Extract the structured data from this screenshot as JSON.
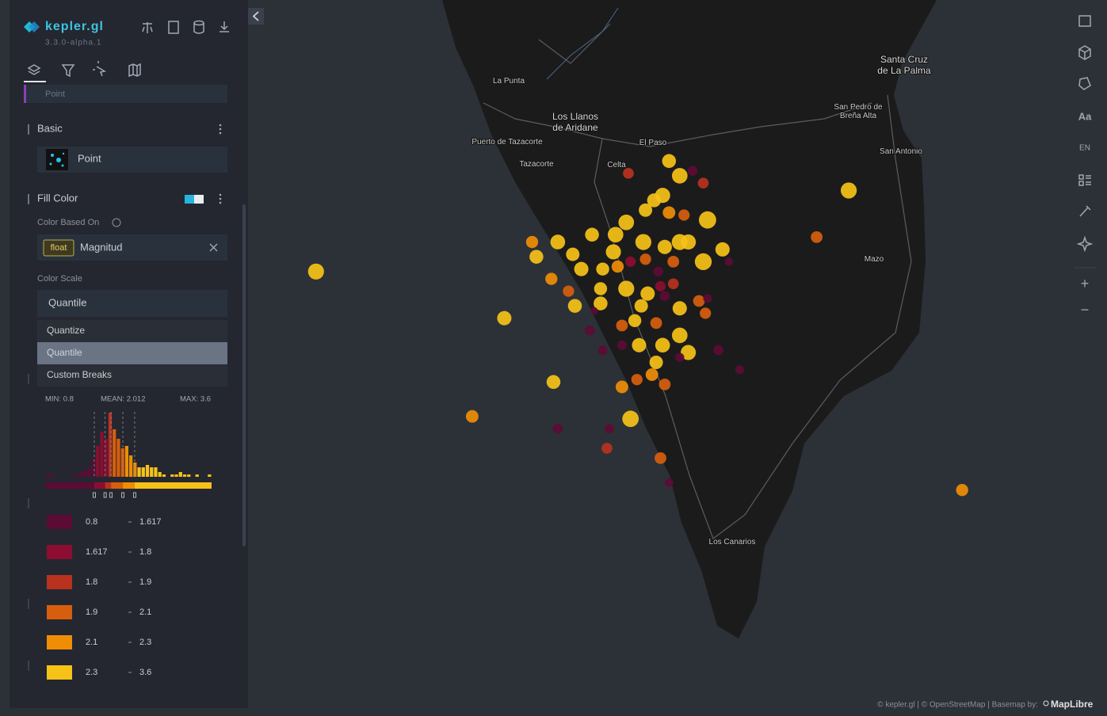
{
  "app": {
    "logo": "kepler.gl",
    "version": "3.3.0-alpha.1"
  },
  "panel": {
    "layer_name": "Point",
    "basic_title": "Basic",
    "layer_type": "Point",
    "fill_color_title": "Fill Color",
    "color_based_on_label": "Color Based On",
    "field_type": "float",
    "field_name": "Magnitud",
    "color_scale_label": "Color Scale",
    "color_scale_selected": "Quantile",
    "color_scale_options": [
      "Quantize",
      "Quantile",
      "Custom Breaks"
    ],
    "highlighted_option": 1,
    "stats": {
      "min": "MIN: 0.8",
      "mean": "MEAN: 2.012",
      "max": "MAX: 3.6"
    },
    "histogram": {
      "bins": [
        0.8,
        0.87,
        0.94,
        1.01,
        1.08,
        1.15,
        1.22,
        1.29,
        1.36,
        1.43,
        1.5,
        1.57,
        1.64,
        1.71,
        1.78,
        1.85,
        1.92,
        1.99,
        2.06,
        2.13,
        2.2,
        2.27,
        2.34,
        2.41,
        2.48,
        2.55,
        2.62,
        2.69,
        2.76,
        2.83,
        2.9,
        2.97,
        3.04,
        3.11,
        3.18,
        3.25,
        3.32,
        3.39,
        3.46,
        3.53,
        3.6
      ],
      "counts": [
        1,
        1,
        0,
        0,
        0,
        0,
        1,
        1,
        2,
        3,
        4,
        8,
        13,
        19,
        16,
        27,
        20,
        16,
        12,
        13,
        9,
        6,
        4,
        4,
        5,
        4,
        4,
        2,
        1,
        0,
        1,
        1,
        2,
        1,
        1,
        0,
        1,
        0,
        0,
        1
      ]
    },
    "color_legend": [
      {
        "color": "#5c0b35",
        "from": 0.8,
        "to": 1.617
      },
      {
        "color": "#8c0d31",
        "from": 1.617,
        "to": 1.8
      },
      {
        "color": "#b8321d",
        "from": 1.8,
        "to": 1.9
      },
      {
        "color": "#d75e0d",
        "from": 1.9,
        "to": 2.1
      },
      {
        "color": "#ef8d05",
        "from": 2.1,
        "to": 2.3
      },
      {
        "color": "#f6c218",
        "from": 2.3,
        "to": 3.6
      }
    ]
  },
  "toolbar": {
    "text_button": "Aa",
    "language_button": "EN",
    "zoom_in": "+",
    "zoom_out": "−"
  },
  "map": {
    "labels": [
      {
        "lines": [
          "La Punta"
        ]
      },
      {
        "lines": [
          "Los Llanos",
          "de Aridane"
        ]
      },
      {
        "lines": [
          "Puerto de Tazacorte"
        ]
      },
      {
        "lines": [
          "Tazacorte"
        ]
      },
      {
        "lines": [
          "El Paso"
        ]
      },
      {
        "lines": [
          "Celta"
        ]
      },
      {
        "lines": [
          "Santa Cruz",
          "de La Palma"
        ]
      },
      {
        "lines": [
          "San Pedro de",
          "Breña Alta"
        ]
      },
      {
        "lines": [
          "San Antonio"
        ]
      },
      {
        "lines": [
          "Mazo"
        ]
      },
      {
        "lines": [
          "Los Canarios"
        ]
      }
    ],
    "attribution": "© kepler.gl | © OpenStreetMap | Basemap by:",
    "basemap": "MapLibre",
    "points": {
      "lon": [
        -18.026,
        -17.938,
        -17.953,
        -17.915,
        -17.879,
        -17.777,
        -17.724,
        -17.792,
        -17.843,
        -17.845,
        -17.836,
        -17.861,
        -17.856,
        -17.88,
        -17.85,
        -17.845,
        -17.925,
        -17.923,
        -17.913,
        -17.906,
        -17.916,
        -17.902,
        -17.908,
        -17.905,
        -17.897,
        -17.886,
        -17.881,
        -17.873,
        -17.864,
        -17.868,
        -17.872,
        -17.861,
        -17.854,
        -17.856,
        -17.852,
        -17.863,
        -17.887,
        -17.892,
        -17.885,
        -17.879,
        -17.872,
        -17.866,
        -17.859,
        -17.881,
        -17.871,
        -17.865,
        -17.859,
        -17.893,
        -17.893,
        -17.874,
        -17.863,
        -17.856,
        -17.847,
        -17.844,
        -17.877,
        -17.883,
        -17.867,
        -17.875,
        -17.864,
        -17.856,
        -17.852,
        -17.867,
        -17.869,
        -17.863,
        -17.876,
        -17.883,
        -17.89,
        -17.865,
        -17.913,
        -17.889,
        -17.861,
        -17.838,
        -17.828,
        -17.898,
        -17.892,
        -17.833,
        -17.896,
        -17.883,
        -17.856,
        -17.843
      ],
      "lat": [
        28.632,
        28.613,
        28.573,
        28.587,
        28.572,
        28.665,
        28.543,
        28.646,
        28.653,
        28.636,
        28.641,
        28.677,
        28.671,
        28.672,
        28.673,
        28.668,
        28.644,
        28.638,
        28.644,
        28.639,
        28.629,
        28.633,
        28.624,
        28.618,
        28.647,
        28.647,
        28.652,
        28.644,
        28.663,
        28.661,
        28.657,
        28.656,
        28.655,
        28.644,
        28.644,
        28.642,
        28.64,
        28.633,
        28.634,
        28.636,
        28.637,
        28.632,
        28.636,
        28.625,
        28.623,
        28.626,
        28.627,
        28.625,
        28.619,
        28.618,
        28.622,
        28.617,
        28.62,
        28.615,
        28.612,
        28.61,
        28.611,
        28.602,
        28.602,
        28.606,
        28.599,
        28.595,
        28.59,
        28.586,
        28.588,
        28.585,
        28.56,
        28.556,
        28.568,
        28.568,
        28.546,
        28.6,
        28.592,
        28.608,
        28.6,
        28.636,
        28.616,
        28.602,
        28.597,
        28.621
      ],
      "magnitude": [
        3.0,
        2.6,
        2.2,
        2.5,
        3.1,
        3.0,
        2.1,
        2.0,
        3.3,
        3.2,
        2.6,
        2.5,
        2.9,
        1.8,
        1.6,
        1.8,
        2.1,
        2.5,
        2.7,
        2.4,
        2.1,
        2.6,
        1.9,
        2.5,
        2.5,
        2.9,
        2.9,
        3.0,
        2.8,
        2.5,
        2.4,
        2.2,
        1.9,
        3.0,
        2.8,
        2.6,
        2.8,
        2.3,
        2.1,
        1.7,
        1.9,
        1.6,
        2.0,
        3.0,
        2.6,
        1.7,
        1.8,
        2.3,
        2.5,
        2.4,
        1.6,
        2.6,
        2.0,
        1.9,
        2.3,
        2.0,
        2.0,
        2.6,
        2.7,
        2.9,
        2.8,
        2.4,
        2.2,
        2.0,
        1.9,
        2.2,
        1.8,
        2.0,
        1.6,
        1.5,
        1.3,
        1.6,
        1.3,
        1.6,
        1.5,
        1.2,
        1.0,
        1.5,
        1.4,
        1.3
      ]
    }
  }
}
